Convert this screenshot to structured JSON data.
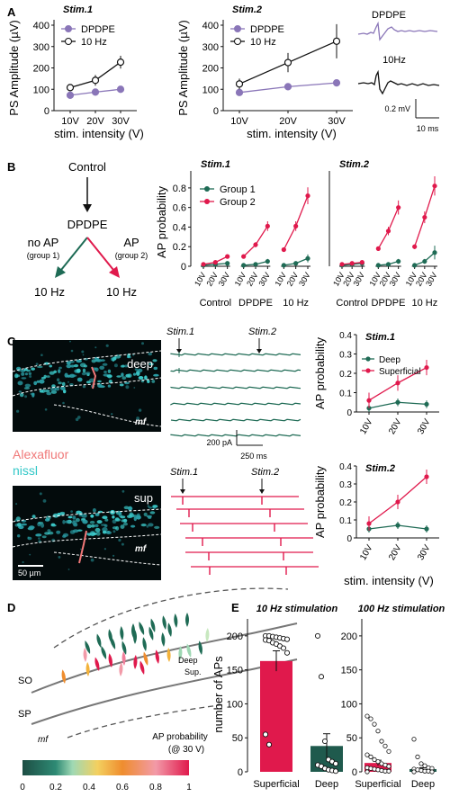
{
  "panels": {
    "a": "A",
    "b": "B",
    "c": "C",
    "d": "D",
    "e": "E"
  },
  "colors": {
    "dpdpe": "#8a76b8",
    "group1": "#1e6b55",
    "group2": "#e0194c",
    "deep": "#1f6b55",
    "superficial": "#e0194c",
    "nissl": "#34c8c8",
    "alexa": "#f07878"
  },
  "panel_a": {
    "charts": [
      {
        "id": "stim1",
        "title": "Stim.1",
        "ylabel": "PS Amplitude (µV)",
        "yticks": [
          "0",
          "100",
          "200",
          "300",
          "400"
        ],
        "xticks": [
          "10V",
          "20V",
          "30V"
        ],
        "xlabel": "stim. intensity (V)",
        "legend": [
          "DPDPE",
          "10 Hz"
        ]
      },
      {
        "id": "stim2",
        "title": "Stim.2",
        "ylabel": "PS Amplitude (µV)",
        "yticks": [
          "0",
          "100",
          "200",
          "300",
          "400"
        ],
        "xticks": [
          "10V",
          "20V",
          "30V"
        ],
        "xlabel": "stim. intensity (V)",
        "legend": [
          "DPDPE",
          "10 Hz"
        ]
      }
    ],
    "traces": {
      "label1": "DPDPE",
      "label2": "10Hz",
      "scale_v": "0.2 mV",
      "scale_t": "10 ms"
    }
  },
  "panel_b": {
    "flow": {
      "top": "Control",
      "middle": "DPDPE",
      "left_label": "no AP",
      "left_sub": "(group 1)",
      "right_label": "AP",
      "right_sub": "(group 2)",
      "bottom_left": "10 Hz",
      "bottom_right": "10 Hz"
    },
    "ylabel": "AP probability",
    "yticks": [
      "0",
      "0.2",
      "0.4",
      "0.6",
      "0.8"
    ],
    "xticks": [
      "10V",
      "20V",
      "30V"
    ],
    "conditions": [
      "Control",
      "DPDPE",
      "10 Hz"
    ],
    "legend": [
      "Group 1",
      "Group 2"
    ],
    "titles": [
      "Stim.1",
      "Stim.2"
    ]
  },
  "panel_c": {
    "img_deep": "deep",
    "img_sup": "sup",
    "mf": "mf",
    "scalebar": "50 µm",
    "alexa": "Alexafluor",
    "nissl": "nissl",
    "trace_labels": [
      "Stim.1",
      "Stim.2",
      "Stim.1",
      "Stim.2"
    ],
    "scale_i": "200 pA",
    "scale_t": "250 ms",
    "chart_titles": [
      "Stim.1",
      "Stim.2"
    ],
    "ylabel": "AP probability",
    "yticks": [
      "0",
      "0.1",
      "0.2",
      "0.3",
      "0.4"
    ],
    "xticks": [
      "10V",
      "20V",
      "30V"
    ],
    "xlabel": "stim. intensity (V)",
    "legend": [
      "Deep",
      "Superficial"
    ]
  },
  "panel_d": {
    "so": "SO",
    "sp": "SP",
    "mf": "mf",
    "deep": "Deep",
    "sup": "Sup.",
    "cbar_title": "AP probability",
    "cbar_sub": "(@ 30 V)",
    "cbar_ticks": [
      "0",
      "0.2",
      "0.4",
      "0.6",
      "0.8",
      "1"
    ]
  },
  "panel_e": {
    "title_10": "10 Hz stimulation",
    "title_100": "100 Hz stimulation",
    "ylabel": "number of APs",
    "yticks": [
      "0",
      "50",
      "100",
      "150",
      "200"
    ],
    "xcats": [
      "Superficial",
      "Deep"
    ]
  },
  "chart_data": [
    {
      "type": "line",
      "title": "Stim.1",
      "x": [
        "10V",
        "20V",
        "30V"
      ],
      "ylabel": "PS Amplitude (µV)",
      "xlabel": "stim. intensity (V)",
      "ylim": [
        0,
        400
      ],
      "series": [
        {
          "name": "DPDPE",
          "values": [
            72,
            87,
            100
          ],
          "errors": [
            6,
            8,
            10
          ]
        },
        {
          "name": "10 Hz",
          "values": [
            108,
            142,
            227
          ],
          "errors": [
            10,
            25,
            30
          ]
        }
      ]
    },
    {
      "type": "line",
      "title": "Stim.2",
      "x": [
        "10V",
        "20V",
        "30V"
      ],
      "ylabel": "PS Amplitude (µV)",
      "xlabel": "stim. intensity (V)",
      "ylim": [
        0,
        400
      ],
      "series": [
        {
          "name": "DPDPE",
          "values": [
            85,
            112,
            130
          ],
          "errors": [
            8,
            10,
            12
          ]
        },
        {
          "name": "10 Hz",
          "values": [
            125,
            225,
            325
          ],
          "errors": [
            25,
            45,
            80
          ]
        }
      ]
    },
    {
      "type": "line",
      "title": "Stim.1",
      "ylabel": "AP probability",
      "ylim": [
        0,
        0.9
      ],
      "x": [
        "Control 10V",
        "Control 20V",
        "Control 30V",
        "DPDPE 10V",
        "DPDPE 20V",
        "DPDPE 30V",
        "10 Hz 10V",
        "10 Hz 20V",
        "10 Hz 30V"
      ],
      "series": [
        {
          "name": "Group 1",
          "values": [
            0.01,
            0.02,
            0.03,
            0.01,
            0.02,
            0.05,
            0.01,
            0.03,
            0.08
          ]
        },
        {
          "name": "Group 2",
          "values": [
            0.02,
            0.04,
            0.1,
            0.1,
            0.22,
            0.41,
            0.17,
            0.41,
            0.72
          ]
        }
      ]
    },
    {
      "type": "line",
      "title": "Stim.2",
      "ylabel": "AP probability",
      "ylim": [
        0,
        0.9
      ],
      "x": [
        "Control 10V",
        "Control 20V",
        "Control 30V",
        "DPDPE 10V",
        "DPDPE 20V",
        "DPDPE 30V",
        "10 Hz 10V",
        "10 Hz 20V",
        "10 Hz 30V"
      ],
      "series": [
        {
          "name": "Group 1",
          "values": [
            0.01,
            0.02,
            0.03,
            0.01,
            0.02,
            0.05,
            0.01,
            0.05,
            0.14
          ]
        },
        {
          "name": "Group 2",
          "values": [
            0.02,
            0.03,
            0.04,
            0.18,
            0.36,
            0.6,
            0.2,
            0.5,
            0.82
          ]
        }
      ]
    },
    {
      "type": "line",
      "title": "Stim.1",
      "ylabel": "AP probability",
      "xlabel": "stim. intensity (V)",
      "ylim": [
        0,
        0.4
      ],
      "x": [
        "10V",
        "20V",
        "30V"
      ],
      "series": [
        {
          "name": "Deep",
          "values": [
            0.02,
            0.05,
            0.04
          ]
        },
        {
          "name": "Superficial",
          "values": [
            0.06,
            0.15,
            0.23
          ]
        }
      ]
    },
    {
      "type": "line",
      "title": "Stim.2",
      "ylabel": "AP probability",
      "xlabel": "stim. intensity (V)",
      "ylim": [
        0,
        0.4
      ],
      "x": [
        "10V",
        "20V",
        "30V"
      ],
      "series": [
        {
          "name": "Deep",
          "values": [
            0.05,
            0.07,
            0.05
          ]
        },
        {
          "name": "Superficial",
          "values": [
            0.08,
            0.2,
            0.34
          ]
        }
      ]
    },
    {
      "type": "bar",
      "title": "10 Hz stimulation",
      "ylabel": "number of APs",
      "ylim": [
        0,
        225
      ],
      "categories": [
        "Superficial",
        "Deep"
      ],
      "values": [
        163,
        38
      ],
      "errors": [
        15,
        18
      ]
    },
    {
      "type": "bar",
      "title": "100 Hz stimulation",
      "ylabel": "number of APs",
      "ylim": [
        0,
        225
      ],
      "categories": [
        "Superficial",
        "Deep"
      ],
      "values": [
        13,
        4
      ],
      "errors": [
        4,
        2
      ]
    }
  ]
}
